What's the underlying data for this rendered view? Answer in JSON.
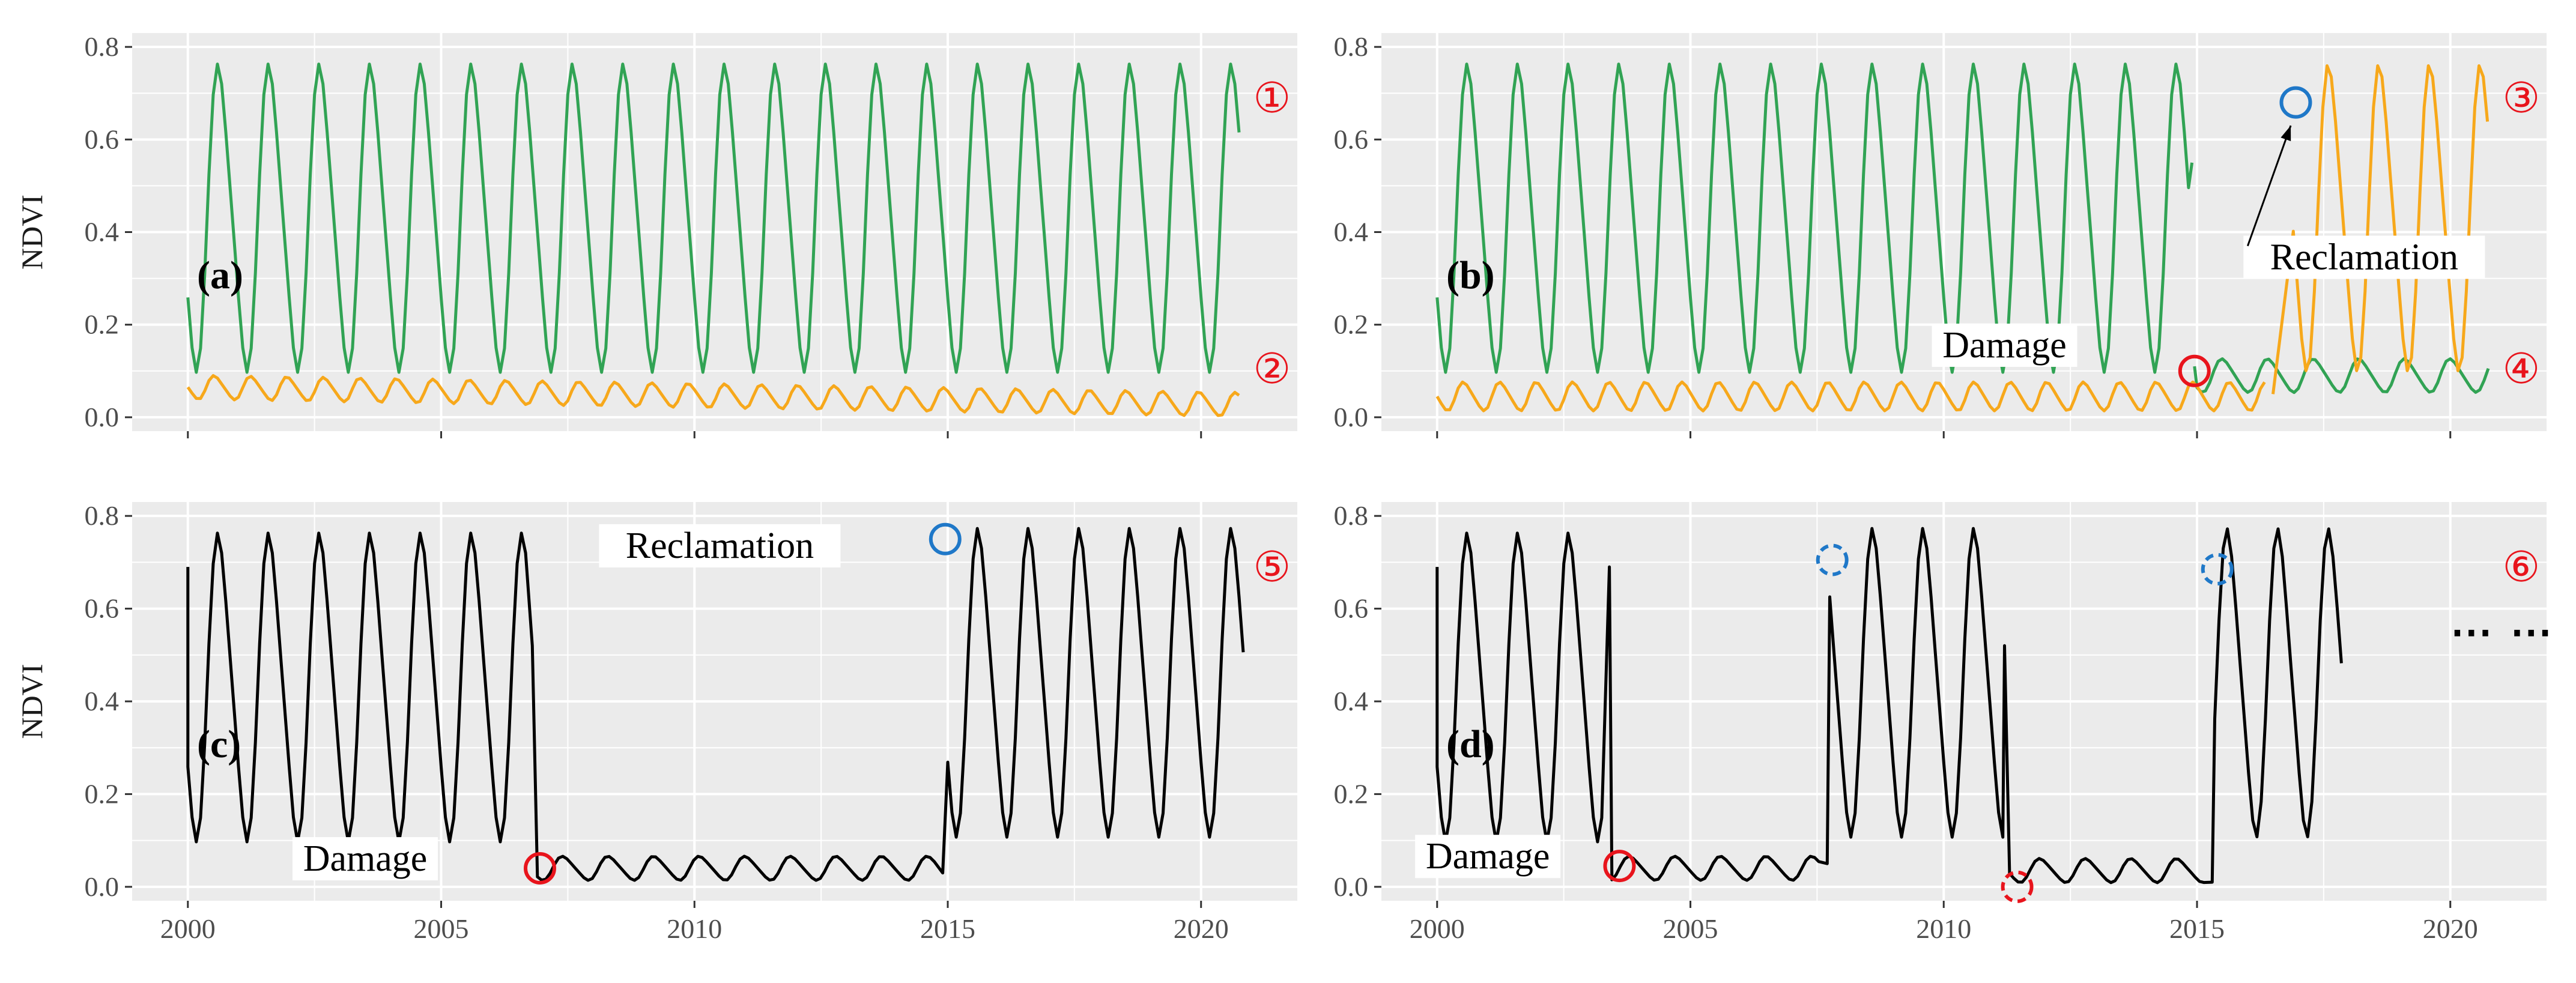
{
  "colors": {
    "green": "#31a354",
    "orange": "#f7a81b",
    "black": "#000000",
    "red": "#e8141c",
    "blue": "#1f78c8",
    "panel_bg": "#ebebeb"
  },
  "axes": {
    "ylabel": "NDVI",
    "y_ticks": [
      "0.0",
      "0.2",
      "0.4",
      "0.6",
      "0.8"
    ],
    "x_ticks": [
      "2000",
      "2005",
      "2010",
      "2015",
      "2020"
    ],
    "ylim": [
      -0.03,
      0.83
    ],
    "xlim": [
      1998.9,
      2021.9
    ]
  },
  "chart_data": [
    {
      "id": "a",
      "type": "line",
      "label": "(a)",
      "show_ylabel": true,
      "series": [
        {
          "name": "series-1",
          "color": "green",
          "x_range": [
            2000.0,
            2020.8
          ],
          "seasonal": {
            "base": 0.43,
            "amp": 0.32,
            "phase": 0.38
          }
        },
        {
          "name": "series-2",
          "color": "orange",
          "x_range": [
            2000.0,
            2020.8
          ],
          "seasonal": {
            "base": 0.065,
            "amp": 0.025,
            "trend": -0.0018,
            "phase": 0.2,
            "period": 0.72
          }
        }
      ],
      "markers": [
        {
          "text": "①",
          "x": 2021.4,
          "y": 0.69
        },
        {
          "text": "②",
          "x": 2021.4,
          "y": 0.105
        }
      ],
      "annotations": []
    },
    {
      "id": "b",
      "type": "line",
      "label": "(b)",
      "show_ylabel": false,
      "series": [
        {
          "name": "series-1-before",
          "color": "green",
          "x_range": [
            2000.0,
            2014.9
          ],
          "seasonal": {
            "base": 0.43,
            "amp": 0.32,
            "phase": 0.38
          },
          "end": [
            2014.9,
            0.55
          ]
        },
        {
          "name": "series-1-after",
          "color": "green",
          "x_range": [
            2015.0,
            2020.8
          ],
          "seasonal": {
            "base": 0.09,
            "amp": 0.035,
            "phase": 0.2,
            "period": 0.9
          },
          "start": [
            2014.95,
            0.11
          ]
        },
        {
          "name": "series-2-before",
          "color": "orange",
          "x_range": [
            2000.0,
            2016.4
          ],
          "seasonal": {
            "base": 0.045,
            "amp": 0.03,
            "phase": 0.2,
            "period": 0.72
          }
        },
        {
          "name": "series-2-after",
          "color": "orange",
          "x_range": [
            2016.9,
            2020.8
          ],
          "seasonal": {
            "base": 0.43,
            "amp": 0.32,
            "phase": 0.38
          },
          "start": [
            2016.5,
            0.05
          ]
        }
      ],
      "markers": [
        {
          "text": "③",
          "x": 2021.4,
          "y": 0.69
        },
        {
          "text": "④",
          "x": 2021.4,
          "y": 0.105
        }
      ],
      "annotations": [
        {
          "text": "Damage",
          "x": 2011.2,
          "y": 0.14,
          "circle": {
            "x": 2014.95,
            "y": 0.1,
            "color": "red",
            "dashed": false
          }
        },
        {
          "text": "Reclamation",
          "x": 2018.3,
          "y": 0.33,
          "circle": {
            "x": 2016.95,
            "y": 0.68,
            "color": "blue",
            "dashed": false
          },
          "arrow": {
            "from": [
              2016.0,
              0.37
            ],
            "to": [
              2016.85,
              0.63
            ]
          }
        }
      ]
    },
    {
      "id": "c",
      "type": "line",
      "label": "(c)",
      "show_ylabel": true,
      "series": [
        {
          "name": "ndvi-trajectory",
          "color": "black",
          "segments": [
            {
              "x_range": [
                2000.0,
                2006.7
              ],
              "seasonal": {
                "base": 0.43,
                "amp": 0.32,
                "phase": 0.38
              },
              "start": [
                2000.0,
                0.69
              ]
            },
            {
              "x_range": [
                2006.9,
                2014.8
              ],
              "seasonal": {
                "base": 0.04,
                "amp": 0.025,
                "phase": 0.2,
                "period": 0.9
              },
              "start": [
                2006.8,
                0.52
              ]
            },
            {
              "x_range": [
                2015.0,
                2020.85
              ],
              "seasonal": {
                "base": 0.44,
                "amp": 0.32,
                "phase": 0.38
              },
              "start": [
                2014.9,
                0.03
              ]
            }
          ]
        }
      ],
      "markers": [
        {
          "text": "⑤",
          "x": 2021.4,
          "y": 0.69
        }
      ],
      "annotations": [
        {
          "text": "Damage",
          "x": 2003.5,
          "y": 0.045,
          "circle": {
            "x": 2006.95,
            "y": 0.04,
            "color": "red",
            "dashed": false
          }
        },
        {
          "text": "Reclamation",
          "x": 2010.5,
          "y": 0.72,
          "circle": {
            "x": 2014.95,
            "y": 0.75,
            "color": "blue",
            "dashed": false
          }
        }
      ]
    },
    {
      "id": "d",
      "type": "line",
      "label": "(d)",
      "show_ylabel": false,
      "series": [
        {
          "name": "ndvi-trajectory",
          "color": "black",
          "segments": [
            {
              "x_range": [
                2000.0,
                2003.3
              ],
              "seasonal": {
                "base": 0.43,
                "amp": 0.32,
                "phase": 0.38
              },
              "start": [
                2000.0,
                0.69
              ]
            },
            {
              "x_range": [
                2003.45,
                2007.6
              ],
              "seasonal": {
                "base": 0.04,
                "amp": 0.025,
                "phase": 0.2,
                "period": 0.9
              },
              "start": [
                2003.4,
                0.69
              ]
            },
            {
              "x_range": [
                2007.75,
                2011.2
              ],
              "seasonal": {
                "base": 0.44,
                "amp": 0.32,
                "phase": 0.38
              },
              "start": [
                2007.7,
                0.05
              ]
            },
            {
              "x_range": [
                2011.3,
                2015.2
              ],
              "seasonal": {
                "base": 0.035,
                "amp": 0.025,
                "phase": 0.2,
                "period": 0.9
              },
              "start": [
                2011.2,
                0.52
              ]
            },
            {
              "x_range": [
                2015.35,
                2017.85
              ],
              "seasonal": {
                "base": 0.44,
                "amp": 0.32,
                "phase": 0.38
              },
              "start": [
                2015.3,
                0.01
              ]
            }
          ]
        }
      ],
      "markers": [
        {
          "text": "⑥",
          "x": 2021.4,
          "y": 0.69
        }
      ],
      "dots": {
        "text": "⋯  ⋯",
        "x": 2020.0,
        "y": 0.545
      },
      "annotations": [
        {
          "text": "Damage",
          "x": 2001.0,
          "y": 0.05,
          "circle": {
            "x": 2003.6,
            "y": 0.045,
            "color": "red",
            "dashed": false
          }
        },
        {
          "circle": {
            "x": 2007.8,
            "y": 0.705,
            "color": "blue",
            "dashed": true
          }
        },
        {
          "circle": {
            "x": 2011.45,
            "y": 0.0,
            "color": "red",
            "dashed": true
          }
        },
        {
          "circle": {
            "x": 2015.4,
            "y": 0.685,
            "color": "blue",
            "dashed": true
          }
        }
      ]
    }
  ]
}
